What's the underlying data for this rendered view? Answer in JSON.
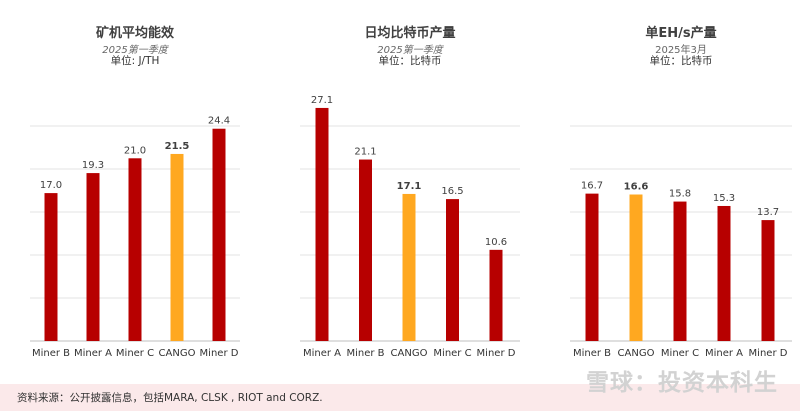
{
  "colors": {
    "highlight": "#FFA820",
    "bar": "#B70000",
    "grid": "#e3e3e3",
    "axis": "#bfbfbf"
  },
  "chart_data": [
    {
      "type": "bar",
      "title": "矿机平均能效",
      "subtitle": "2025第一季度",
      "unit": "单位: J/TH",
      "categories": [
        "Miner B",
        "Miner A",
        "Miner C",
        "CANGO",
        "Miner D"
      ],
      "values": [
        17.0,
        19.3,
        21.0,
        21.5,
        24.4
      ],
      "value_labels": [
        "17.0",
        "19.3",
        "21.0",
        "21.5",
        "24.4"
      ],
      "highlight": "CANGO",
      "ylim": [
        0,
        25
      ],
      "grid": true
    },
    {
      "type": "bar",
      "title": "日均比特币产量",
      "subtitle": "2025第一季度",
      "unit": "单位：比特币",
      "categories": [
        "Miner A",
        "Miner B",
        "CANGO",
        "Miner C",
        "Miner D"
      ],
      "values": [
        27.1,
        21.1,
        17.1,
        16.5,
        10.6
      ],
      "value_labels": [
        "27.1",
        "21.1",
        "17.1",
        "16.5",
        "10.6"
      ],
      "highlight": "CANGO",
      "ylim": [
        0,
        30
      ],
      "grid": true
    },
    {
      "type": "bar",
      "title": "单EH/s产量",
      "subtitle": "2025年3月",
      "unit": "单位：比特币",
      "categories": [
        "Miner B",
        "CANGO",
        "Miner C",
        "Miner A",
        "Miner D"
      ],
      "values": [
        16.7,
        16.6,
        15.8,
        15.3,
        13.7
      ],
      "value_labels": [
        "16.7",
        "16.6",
        "15.8",
        "15.3",
        "13.7"
      ],
      "highlight": "CANGO",
      "ylim": [
        0,
        30
      ],
      "grid": true
    }
  ],
  "footer": {
    "source": "资料来源：公开披露信息，包括MARA, CLSK , RIOT and CORZ.",
    "watermark": "雪球：投资本科生"
  }
}
